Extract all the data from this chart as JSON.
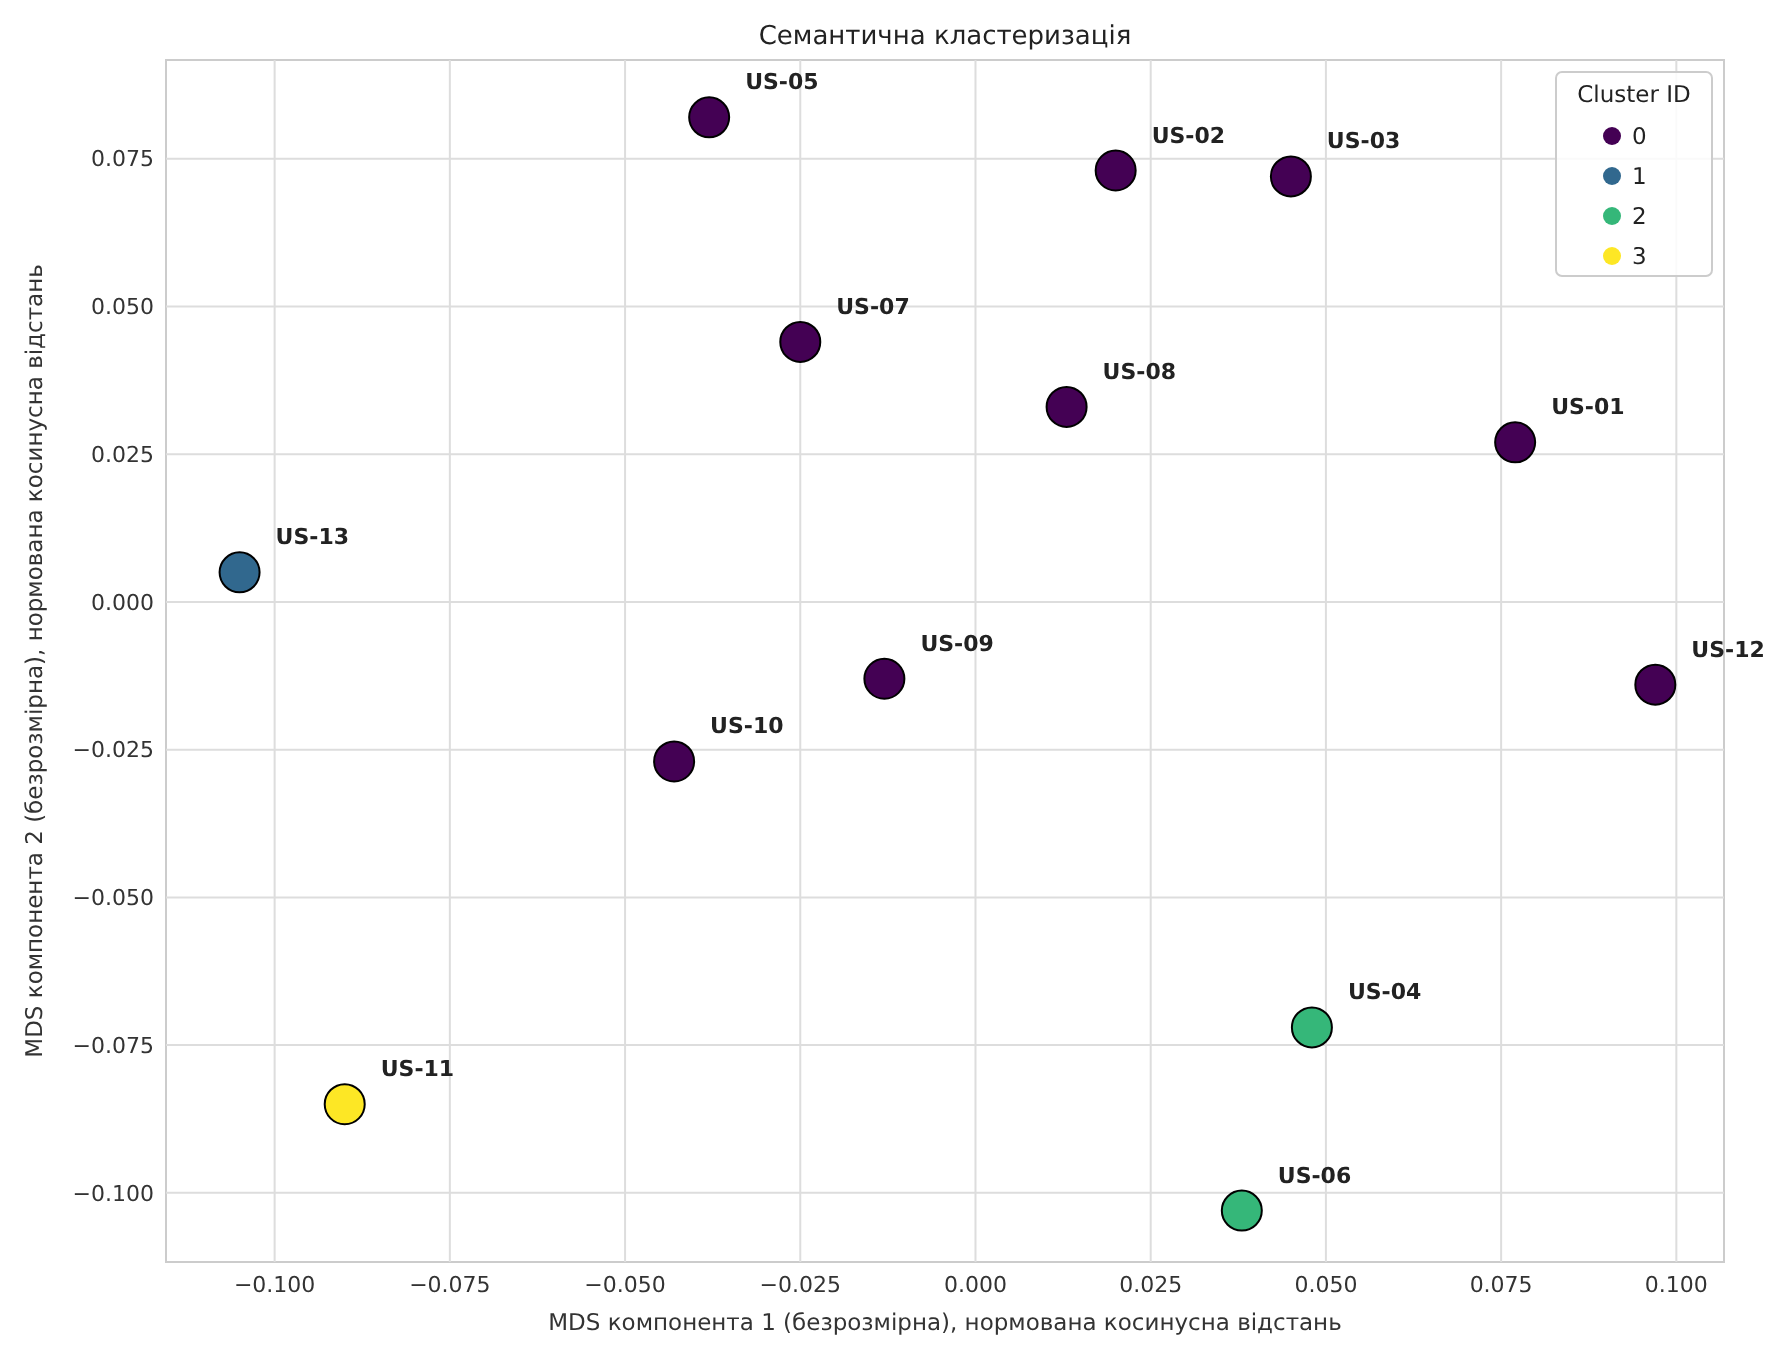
{
  "chart_data": {
    "type": "scatter",
    "title": "Семантична кластеризація",
    "xlabel": "MDS компонента 1 (безрозмірна), нормована косинусна відстань",
    "ylabel": "MDS компонента 2 (безрозмірна), нормована косинусна відстань",
    "legend_title": "Cluster ID",
    "legend": "top right",
    "grid": true,
    "marker": "circle",
    "xlim": [
      -0.1155,
      0.1068
    ],
    "ylim": [
      -0.1117,
      0.0917
    ],
    "xticks": [
      {
        "value": -0.1,
        "label": "−0.100"
      },
      {
        "value": -0.075,
        "label": "−0.075"
      },
      {
        "value": -0.05,
        "label": "−0.050"
      },
      {
        "value": -0.025,
        "label": "−0.025"
      },
      {
        "value": 0,
        "label": "0.000"
      },
      {
        "value": 0.025,
        "label": "0.025"
      },
      {
        "value": 0.05,
        "label": "0.050"
      },
      {
        "value": 0.075,
        "label": "0.075"
      },
      {
        "value": 0.1,
        "label": "0.100"
      }
    ],
    "yticks": [
      {
        "value": -0.1,
        "label": "−0.100"
      },
      {
        "value": -0.075,
        "label": "−0.075"
      },
      {
        "value": -0.05,
        "label": "−0.050"
      },
      {
        "value": -0.025,
        "label": "−0.025"
      },
      {
        "value": 0,
        "label": "0.000"
      },
      {
        "value": 0.025,
        "label": "0.025"
      },
      {
        "value": 0.05,
        "label": "0.050"
      },
      {
        "value": 0.075,
        "label": "0.075"
      }
    ],
    "series": [
      {
        "name": "0",
        "color": "#440154",
        "x": [
          -0.038,
          0.02,
          0.045,
          -0.025,
          0.013,
          0.077,
          -0.013,
          0.097,
          -0.043
        ],
        "values": [
          0.082,
          0.073,
          0.072,
          0.044,
          0.033,
          0.027,
          -0.013,
          -0.014,
          -0.027
        ]
      },
      {
        "name": "1",
        "color": "#31688e",
        "x": [
          -0.105
        ],
        "values": [
          0.005
        ]
      },
      {
        "name": "2",
        "color": "#35b779",
        "x": [
          0.048,
          0.038
        ],
        "values": [
          -0.072,
          -0.103
        ]
      },
      {
        "name": "3",
        "color": "#fde725",
        "x": [
          -0.09
        ],
        "values": [
          -0.085
        ]
      }
    ],
    "annotations": [
      {
        "text": "US-05",
        "x": -0.038,
        "y": 0.082
      },
      {
        "text": "US-02",
        "x": 0.02,
        "y": 0.073
      },
      {
        "text": "US-03",
        "x": 0.045,
        "y": 0.072
      },
      {
        "text": "US-07",
        "x": -0.025,
        "y": 0.044
      },
      {
        "text": "US-08",
        "x": 0.013,
        "y": 0.033
      },
      {
        "text": "US-01",
        "x": 0.077,
        "y": 0.027
      },
      {
        "text": "US-13",
        "x": -0.105,
        "y": 0.005
      },
      {
        "text": "US-09",
        "x": -0.013,
        "y": -0.013
      },
      {
        "text": "US-12",
        "x": 0.097,
        "y": -0.014
      },
      {
        "text": "US-10",
        "x": -0.043,
        "y": -0.027
      },
      {
        "text": "US-04",
        "x": 0.048,
        "y": -0.072
      },
      {
        "text": "US-11",
        "x": -0.09,
        "y": -0.085
      },
      {
        "text": "US-06",
        "x": 0.038,
        "y": -0.103
      }
    ]
  }
}
